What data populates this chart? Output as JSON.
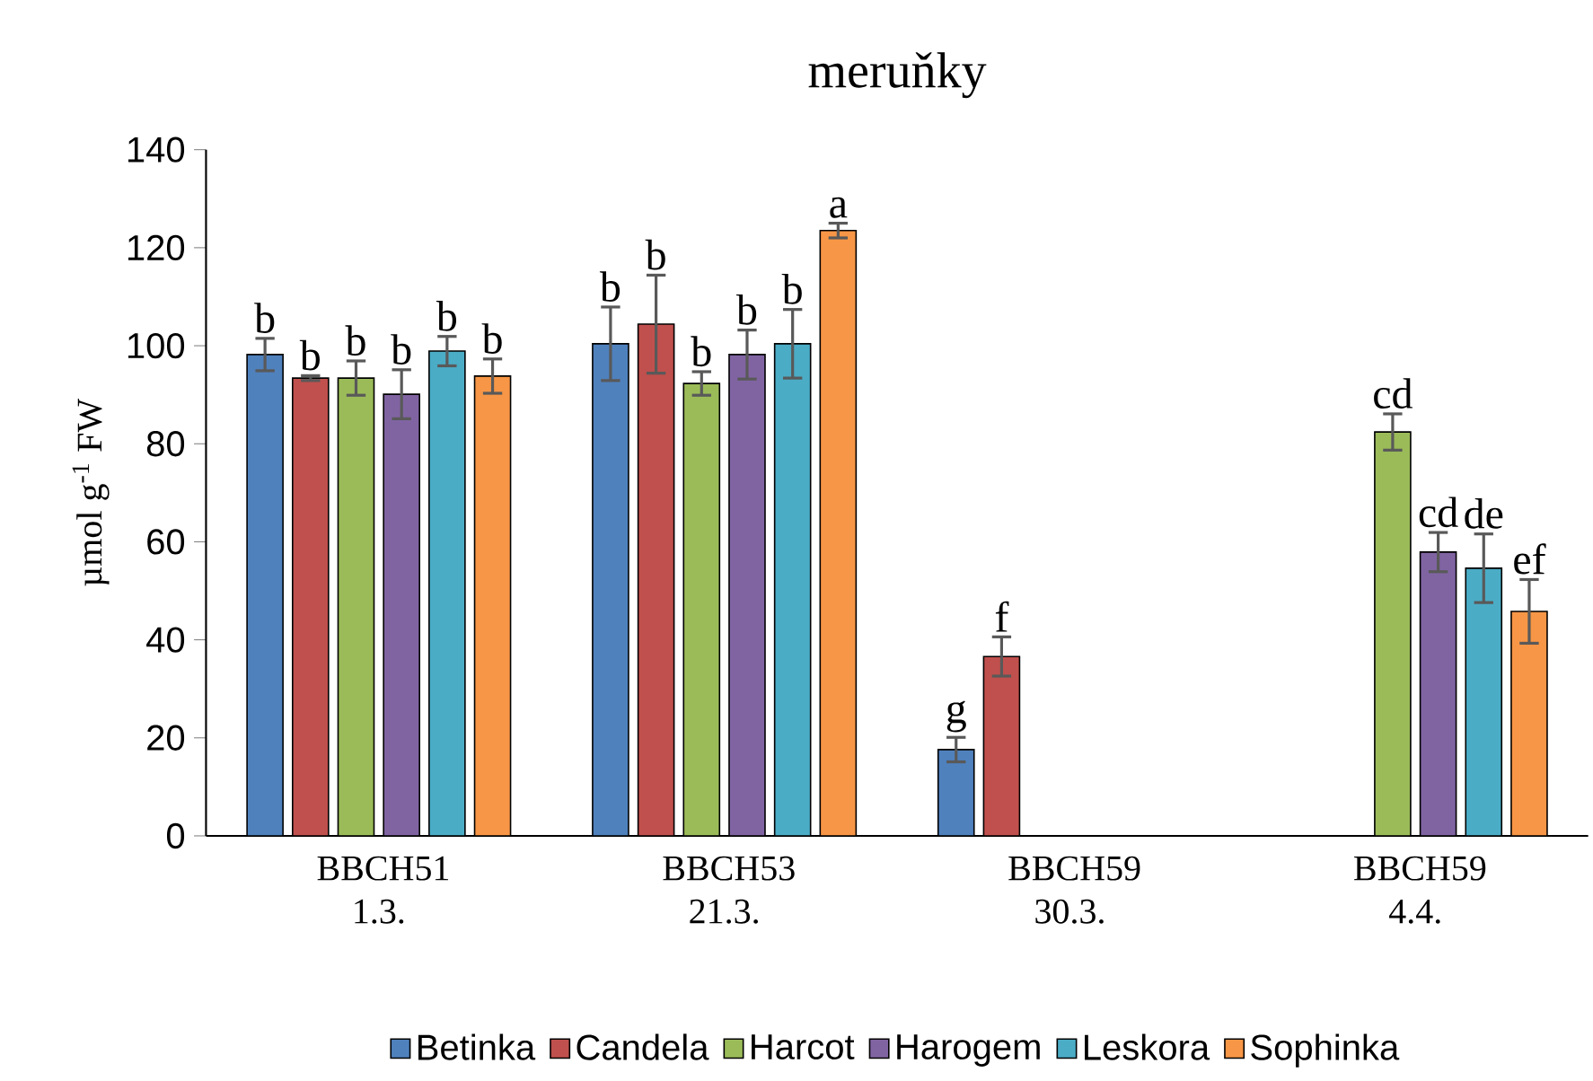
{
  "chart_data": {
    "type": "bar",
    "title": "meruňky",
    "ylabel": "µmol g$^{-1}$ FW",
    "categories": [
      "BBCH51 1.3.",
      "BBCH53 21.3.",
      "BBCH59 30.3.",
      "BBCH59 4.4."
    ],
    "ylim": [
      0,
      140
    ],
    "yticks": [
      0,
      20,
      40,
      60,
      80,
      100,
      120,
      140
    ],
    "grid": false,
    "legend": "bottom",
    "series": [
      {
        "name": "Betinka",
        "color": "#4f81bd",
        "values": [
          98.2,
          100.4,
          17.6,
          null
        ],
        "errors": [
          3.3,
          7.5,
          2.5,
          null
        ],
        "value_labels": [
          "b",
          "b",
          "g",
          null
        ]
      },
      {
        "name": "Candela",
        "color": "#c0504d",
        "values": [
          93.4,
          104.4,
          36.6,
          null
        ],
        "errors": [
          0.5,
          10,
          4,
          null
        ],
        "value_labels": [
          "b",
          "b",
          "f",
          null
        ]
      },
      {
        "name": "Harcot",
        "color": "#9bbb59",
        "values": [
          93.4,
          92.3,
          null,
          82.4
        ],
        "errors": [
          3.5,
          2.4,
          null,
          3.7
        ],
        "value_labels": [
          "b",
          "b",
          null,
          "cd"
        ]
      },
      {
        "name": "Harogem",
        "color": "#8064a2",
        "values": [
          90.1,
          98.2,
          null,
          57.9
        ],
        "errors": [
          5,
          5,
          null,
          4
        ],
        "value_labels": [
          "b",
          "b",
          null,
          "cd"
        ]
      },
      {
        "name": "Leskora",
        "color": "#4bacc6",
        "values": [
          98.9,
          100.4,
          null,
          54.6
        ],
        "errors": [
          3,
          7,
          null,
          7
        ],
        "value_labels": [
          "b",
          "b",
          null,
          "de"
        ]
      },
      {
        "name": "Sophinka",
        "color": "#f79646",
        "values": [
          93.8,
          123.5,
          null,
          45.8
        ],
        "errors": [
          3.5,
          1.5,
          null,
          6.5
        ],
        "value_labels": [
          "b",
          "a",
          null,
          "ef"
        ]
      }
    ]
  }
}
